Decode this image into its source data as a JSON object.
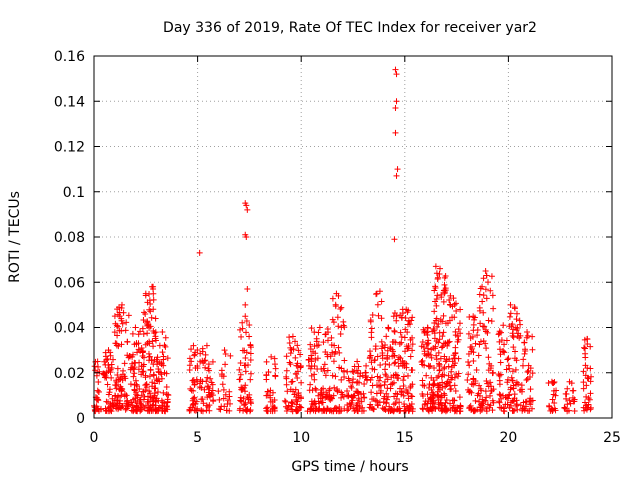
{
  "chart_data": {
    "type": "scatter",
    "title": "Day 336 of 2019, Rate Of TEC Index for receiver yar2",
    "xlabel": "GPS time / hours",
    "ylabel": "ROTI / TECUs",
    "xlim": [
      0,
      25
    ],
    "ylim": [
      0,
      0.16
    ],
    "x_ticks": [
      0,
      5,
      10,
      15,
      20,
      25
    ],
    "y_ticks": [
      0,
      0.02,
      0.04,
      0.06,
      0.08,
      0.1,
      0.12,
      0.14,
      0.16
    ],
    "grid": true,
    "marker": "+",
    "marker_color": "#ff0000",
    "grid_color": "#a0a0a0",
    "clusters": [
      {
        "start": 0.0,
        "end": 0.35,
        "max": 0.025,
        "n": 30
      },
      {
        "start": 0.4,
        "end": 1.0,
        "max": 0.03,
        "n": 50
      },
      {
        "start": 1.0,
        "end": 1.7,
        "max": 0.05,
        "n": 90
      },
      {
        "start": 1.7,
        "end": 2.3,
        "max": 0.04,
        "n": 70
      },
      {
        "start": 2.3,
        "end": 2.7,
        "max": 0.055,
        "n": 60
      },
      {
        "start": 2.7,
        "end": 3.0,
        "max": 0.058,
        "n": 50
      },
      {
        "start": 3.0,
        "end": 3.6,
        "max": 0.038,
        "n": 60
      },
      {
        "start": 4.6,
        "end": 5.0,
        "max": 0.032,
        "n": 40
      },
      {
        "start": 5.1,
        "end": 5.8,
        "max": 0.032,
        "n": 50
      },
      {
        "start": 6.0,
        "end": 6.6,
        "max": 0.03,
        "n": 25
      },
      {
        "start": 7.0,
        "end": 7.6,
        "max": 0.045,
        "n": 60
      },
      {
        "start": 8.3,
        "end": 8.8,
        "max": 0.027,
        "n": 35
      },
      {
        "start": 9.2,
        "end": 10.0,
        "max": 0.036,
        "n": 70
      },
      {
        "start": 10.3,
        "end": 11.5,
        "max": 0.04,
        "n": 110
      },
      {
        "start": 11.5,
        "end": 12.1,
        "max": 0.054,
        "n": 50
      },
      {
        "start": 12.2,
        "end": 13.2,
        "max": 0.025,
        "n": 70
      },
      {
        "start": 13.3,
        "end": 14.0,
        "max": 0.055,
        "n": 60
      },
      {
        "start": 14.0,
        "end": 14.4,
        "max": 0.04,
        "n": 40
      },
      {
        "start": 14.4,
        "end": 15.4,
        "max": 0.048,
        "n": 120
      },
      {
        "start": 15.8,
        "end": 16.4,
        "max": 0.04,
        "n": 80
      },
      {
        "start": 16.4,
        "end": 17.0,
        "max": 0.066,
        "n": 110
      },
      {
        "start": 17.0,
        "end": 17.7,
        "max": 0.053,
        "n": 80
      },
      {
        "start": 18.0,
        "end": 18.6,
        "max": 0.045,
        "n": 50
      },
      {
        "start": 18.6,
        "end": 19.3,
        "max": 0.063,
        "n": 70
      },
      {
        "start": 19.5,
        "end": 20.0,
        "max": 0.041,
        "n": 40
      },
      {
        "start": 20.0,
        "end": 20.6,
        "max": 0.049,
        "n": 60
      },
      {
        "start": 20.6,
        "end": 21.2,
        "max": 0.038,
        "n": 40
      },
      {
        "start": 21.9,
        "end": 22.3,
        "max": 0.016,
        "n": 20
      },
      {
        "start": 22.7,
        "end": 23.2,
        "max": 0.016,
        "n": 20
      },
      {
        "start": 23.6,
        "end": 24.0,
        "max": 0.035,
        "n": 35
      }
    ],
    "outliers": [
      {
        "x": 5.1,
        "y": 0.073
      },
      {
        "x": 7.3,
        "y": 0.095
      },
      {
        "x": 7.35,
        "y": 0.094
      },
      {
        "x": 7.4,
        "y": 0.092
      },
      {
        "x": 7.3,
        "y": 0.081
      },
      {
        "x": 7.35,
        "y": 0.08
      },
      {
        "x": 7.4,
        "y": 0.057
      },
      {
        "x": 7.3,
        "y": 0.05
      },
      {
        "x": 14.55,
        "y": 0.154
      },
      {
        "x": 14.6,
        "y": 0.152
      },
      {
        "x": 14.6,
        "y": 0.14
      },
      {
        "x": 14.55,
        "y": 0.137
      },
      {
        "x": 14.55,
        "y": 0.126
      },
      {
        "x": 14.65,
        "y": 0.11
      },
      {
        "x": 14.6,
        "y": 0.107
      },
      {
        "x": 14.5,
        "y": 0.079
      },
      {
        "x": 16.5,
        "y": 0.067
      },
      {
        "x": 16.55,
        "y": 0.064
      },
      {
        "x": 16.6,
        "y": 0.062
      },
      {
        "x": 18.9,
        "y": 0.065
      },
      {
        "x": 18.95,
        "y": 0.063
      },
      {
        "x": 2.8,
        "y": 0.058
      },
      {
        "x": 2.85,
        "y": 0.057
      },
      {
        "x": 11.7,
        "y": 0.055
      },
      {
        "x": 13.8,
        "y": 0.056
      },
      {
        "x": 17.2,
        "y": 0.054
      },
      {
        "x": 20.1,
        "y": 0.05
      }
    ]
  }
}
